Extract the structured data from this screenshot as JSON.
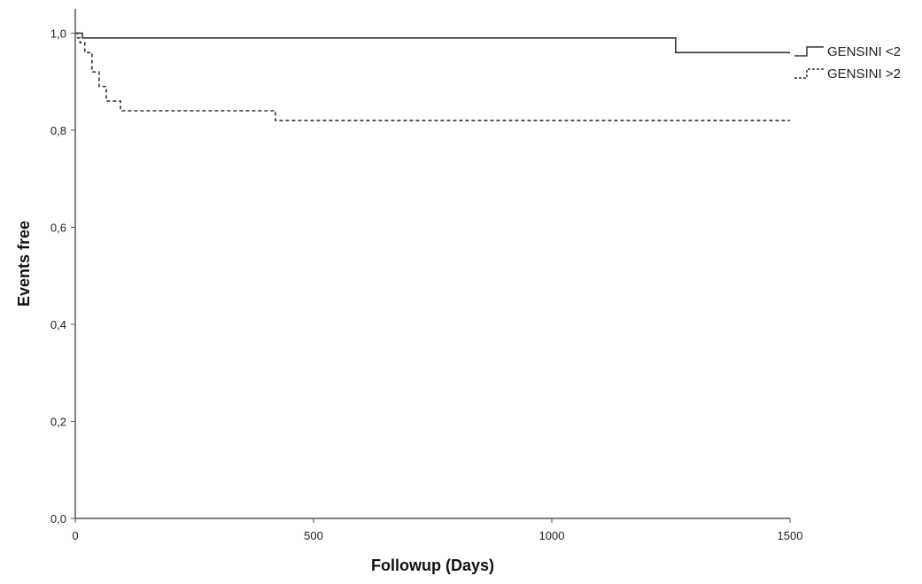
{
  "chart_data": {
    "type": "line",
    "chart_subtype": "kaplan-meier step",
    "title": "",
    "xlabel": "Followup (Days)",
    "ylabel": "Events free",
    "xlim": [
      0,
      1500
    ],
    "ylim": [
      0,
      1.05
    ],
    "x_ticks": [
      0,
      500,
      1000,
      1500
    ],
    "x_tick_labels": [
      "0",
      "500",
      "1000",
      "1500"
    ],
    "y_ticks": [
      0,
      0.2,
      0.4,
      0.6,
      0.8,
      1.0
    ],
    "y_tick_labels": [
      "0,0",
      "0,2",
      "0,4",
      "0,6",
      "0,8",
      "1,0"
    ],
    "grid": false,
    "legend_position": "top-right",
    "series": [
      {
        "name": "GENSINI <2",
        "line_style": "solid",
        "color": "#333333",
        "x": [
          0,
          15,
          1260,
          1500
        ],
        "y": [
          1.0,
          0.99,
          0.96,
          0.96
        ]
      },
      {
        "name": "GENSINI >2",
        "line_style": "dashed",
        "color": "#333333",
        "x": [
          0,
          5,
          10,
          20,
          35,
          50,
          65,
          85,
          95,
          420,
          1500
        ],
        "y": [
          1.0,
          0.99,
          0.98,
          0.96,
          0.92,
          0.89,
          0.86,
          0.86,
          0.84,
          0.82,
          0.82
        ]
      }
    ]
  }
}
